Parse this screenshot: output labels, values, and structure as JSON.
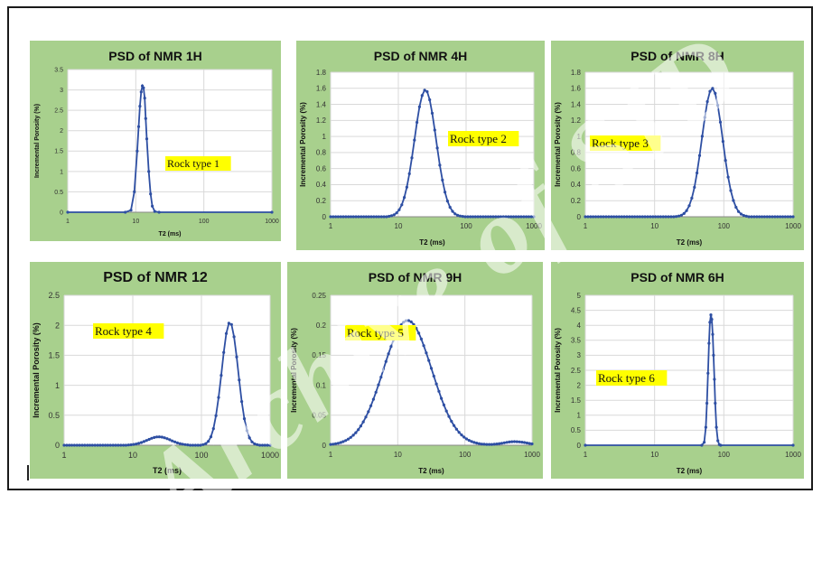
{
  "chart_data": [
    {
      "type": "line",
      "title": "PSD of NMR 1H",
      "xlabel": "T2 (ms)",
      "ylabel": "Incremental Porosity (%)",
      "xscale": "log",
      "xlim": [
        1,
        1000
      ],
      "ylim": [
        0,
        3.5
      ],
      "x_ticks": [
        "1",
        "10",
        "100",
        "1000"
      ],
      "y_ticks": [
        "0",
        "0.5",
        "1",
        "1.5",
        "2",
        "2.5",
        "3",
        "3.5"
      ],
      "annotation": "Rock type 1",
      "series": [
        {
          "x": [
            1,
            7,
            8.5,
            9.5,
            10.5,
            11,
            11.5,
            12,
            12.5,
            13,
            13.5,
            14,
            14.5,
            15.5,
            16.5,
            17.5,
            19,
            22,
            1000
          ],
          "values": [
            0,
            0,
            0.05,
            0.5,
            1.5,
            2.1,
            2.6,
            2.95,
            3.1,
            3.05,
            2.8,
            2.3,
            1.8,
            1.0,
            0.45,
            0.15,
            0.02,
            0,
            0
          ]
        }
      ]
    },
    {
      "type": "line",
      "title": "PSD of NMR 4H",
      "xlabel": "T2 (ms)",
      "ylabel": "Incremental Porosity (%)",
      "xscale": "log",
      "xlim": [
        1,
        1000
      ],
      "ylim": [
        0,
        1.8
      ],
      "x_ticks": [
        "1",
        "10",
        "100",
        "1000"
      ],
      "y_ticks": [
        "0",
        "0.2",
        "0.4",
        "0.6",
        "0.8",
        "1",
        "1.2",
        "1.4",
        "1.6",
        "1.8"
      ],
      "annotation": "Rock type 2",
      "series": [
        {
          "peaks": [
            [
              25,
              1.58,
              0.16
            ]
          ]
        }
      ]
    },
    {
      "type": "line",
      "title": "PSD of NMR 8H",
      "xlabel": "T2 (ms)",
      "ylabel": "Incremental Porosity (%)",
      "xscale": "log",
      "xlim": [
        1,
        1000
      ],
      "ylim": [
        0,
        1.8
      ],
      "x_ticks": [
        "1",
        "10",
        "100",
        "1000"
      ],
      "y_ticks": [
        "0",
        "0.2",
        "0.4",
        "0.6",
        "0.8",
        "1",
        "1.2",
        "1.4",
        "1.6",
        "1.8"
      ],
      "annotation": "Rock type 3",
      "series": [
        {
          "peaks": [
            [
              68,
              1.6,
              0.15
            ]
          ]
        }
      ]
    },
    {
      "type": "line",
      "title": "PSD of NMR 12",
      "xlabel": "T2 (ms)",
      "ylabel": "Incremental Porosity (%)",
      "xscale": "log",
      "xlim": [
        1,
        1000
      ],
      "ylim": [
        0,
        2.5
      ],
      "x_ticks": [
        "1",
        "10",
        "100",
        "1000"
      ],
      "y_ticks": [
        "0",
        "0.5",
        "1",
        "1.5",
        "2",
        "2.5"
      ],
      "annotation": "Rock type 4",
      "series": [
        {
          "peaks": [
            [
              24,
              0.14,
              0.17
            ],
            [
              260,
              2.05,
              0.12
            ]
          ]
        }
      ]
    },
    {
      "type": "line",
      "title": "PSD of NMR 9H",
      "xlabel": "T2 (ms)",
      "ylabel": "Incremental Porosity (%)",
      "xscale": "log",
      "xlim": [
        1,
        1000
      ],
      "ylim": [
        0,
        0.25
      ],
      "x_ticks": [
        "1",
        "10",
        "100",
        "1000"
      ],
      "y_ticks": [
        "0",
        "0.05",
        "0.1",
        "0.15",
        "0.2",
        "0.25"
      ],
      "annotation": "Rock type 5",
      "series": [
        {
          "peaks": [
            [
              14,
              0.208,
              0.36
            ],
            [
              560,
              0.006,
              0.18
            ]
          ]
        }
      ]
    },
    {
      "type": "line",
      "title": "PSD of NMR 6H",
      "xlabel": "T2 (ms)",
      "ylabel": "Incremental Porosity (%)",
      "xscale": "log",
      "xlim": [
        1,
        1000
      ],
      "ylim": [
        0,
        5
      ],
      "x_ticks": [
        "1",
        "10",
        "100",
        "1000"
      ],
      "y_ticks": [
        "0",
        "0.5",
        "1",
        "1.5",
        "2",
        "2.5",
        "3",
        "3.5",
        "4",
        "4.5",
        "5"
      ],
      "annotation": "Rock type 6",
      "series": [
        {
          "x": [
            1,
            48,
            52,
            55,
            57,
            59,
            61,
            63,
            65,
            67,
            69,
            71,
            73,
            75,
            78,
            82,
            86,
            90,
            1000
          ],
          "values": [
            0,
            0,
            0.1,
            0.6,
            1.4,
            2.4,
            3.4,
            4.1,
            4.35,
            4.2,
            3.7,
            3.0,
            2.2,
            1.4,
            0.6,
            0.15,
            0.02,
            0,
            0
          ]
        }
      ]
    }
  ],
  "watermark": "Archive of SID",
  "colors": {
    "panel_bg": "#a8d08d",
    "plot_bg": "#ffffff",
    "line": "#2e4fa3",
    "highlight": "#ffff00",
    "grid": "#d9d9d9"
  }
}
